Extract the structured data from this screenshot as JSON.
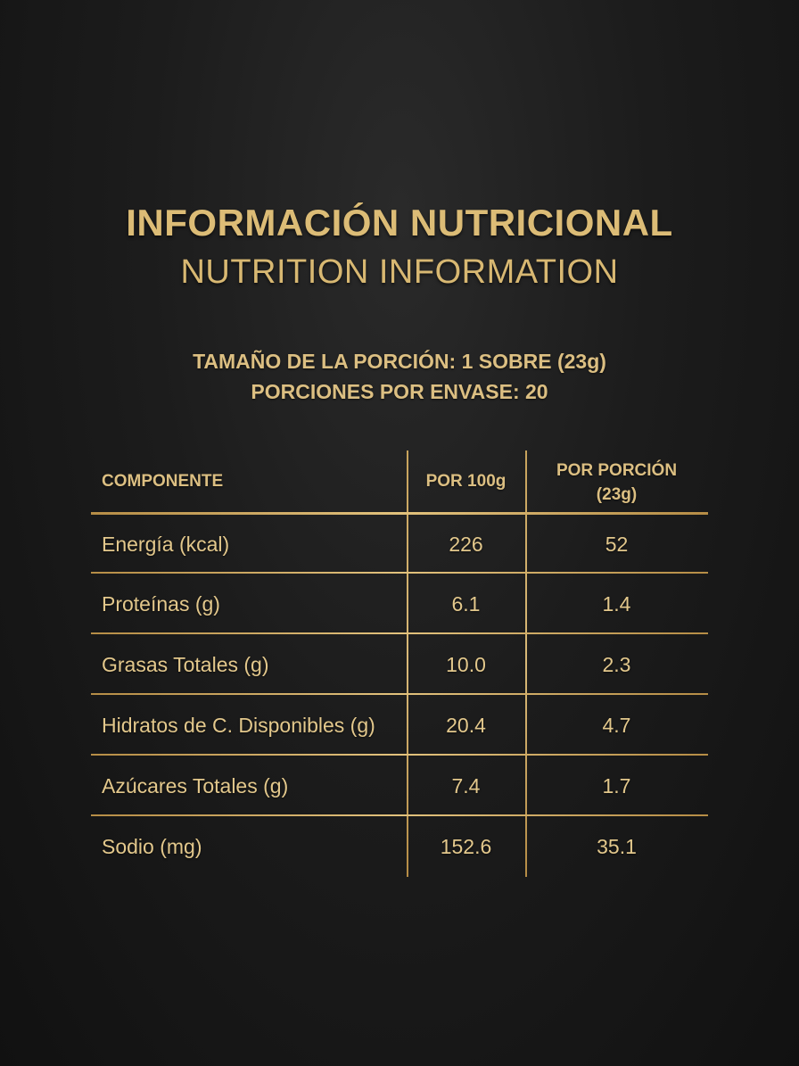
{
  "title": {
    "es": "INFORMACIÓN NUTRICIONAL",
    "en": "NUTRITION INFORMATION"
  },
  "serving": {
    "size": "TAMAÑO DE LA PORCIÓN: 1 SOBRE (23g)",
    "per_package": "PORCIONES POR ENVASE: 20"
  },
  "table": {
    "headers": {
      "component": "COMPONENTE",
      "per_100g": "POR 100g",
      "per_portion_line1": "POR PORCIÓN",
      "per_portion_line2": "(23g)"
    },
    "rows": [
      {
        "name": "Energía (kcal)",
        "per_100g": "226",
        "per_portion": "52"
      },
      {
        "name": "Proteínas (g)",
        "per_100g": "6.1",
        "per_portion": "1.4"
      },
      {
        "name": "Grasas Totales (g)",
        "per_100g": "10.0",
        "per_portion": "2.3"
      },
      {
        "name": "Hidratos de C. Disponibles (g)",
        "per_100g": "20.4",
        "per_portion": "4.7"
      },
      {
        "name": "Azúcares Totales (g)",
        "per_100g": "7.4",
        "per_portion": "1.7"
      },
      {
        "name": "Sodio (mg)",
        "per_100g": "152.6",
        "per_portion": "35.1"
      }
    ]
  },
  "colors": {
    "background": "#1c1c1c",
    "gold": "#dcbc76",
    "gold_line": "#c8a35c"
  }
}
